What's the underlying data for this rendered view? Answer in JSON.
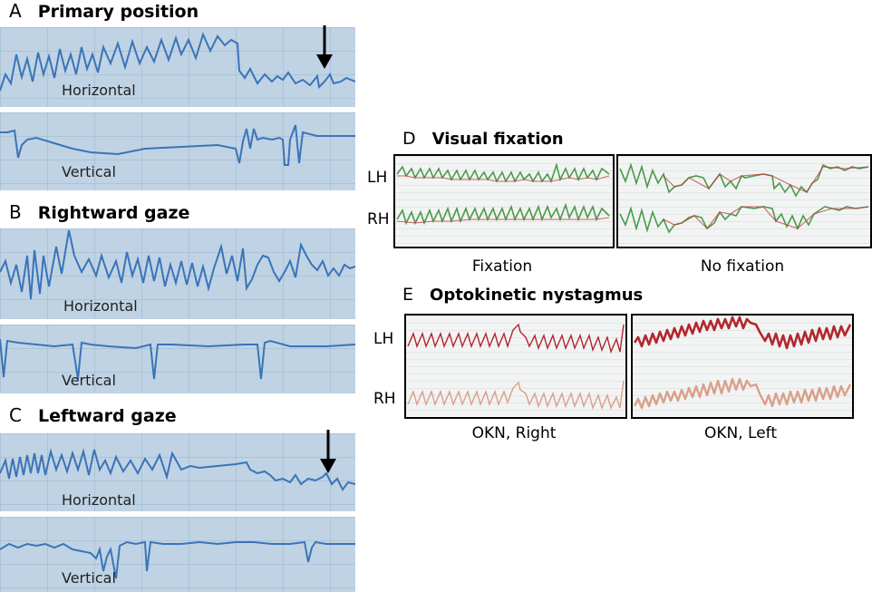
{
  "panels": {
    "A": {
      "letter": "A",
      "title": "Primary position",
      "horizontal": "Horizontal",
      "vertical": "Vertical"
    },
    "B": {
      "letter": "B",
      "title": "Rightward gaze",
      "horizontal": "Horizontal",
      "vertical": "Vertical"
    },
    "C": {
      "letter": "C",
      "title": "Leftward gaze",
      "horizontal": "Horizontal",
      "vertical": "Vertical"
    },
    "D": {
      "letter": "D",
      "title": "Visual fixation",
      "row1": "LH",
      "row2": "RH",
      "caption_left": "Fixation",
      "caption_right": "No fixation"
    },
    "E": {
      "letter": "E",
      "title": "Optokinetic nystagmus",
      "row1": "LH",
      "row2": "RH",
      "caption_left": "OKN, Right",
      "caption_right": "OKN, Left"
    }
  },
  "colors": {
    "trace_blue": "#3a74b8",
    "strip_bg": "#bfd3e4",
    "fixation_green": "#4a9a4a",
    "fixation_red": "#c04040",
    "okn_red_dark": "#b3262e",
    "okn_red_light": "#d9a08a"
  },
  "icons": [
    "down-arrow-icon"
  ]
}
